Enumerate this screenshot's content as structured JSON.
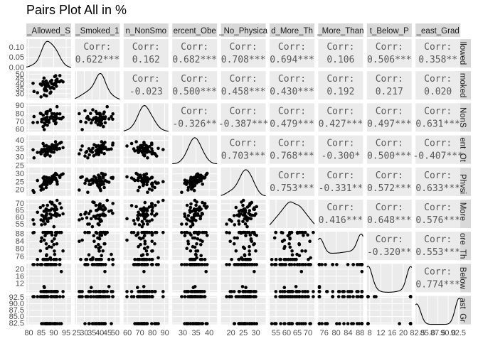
{
  "title": "Pairs Plot All in %",
  "chart_data": {
    "type": "pairs",
    "variables": [
      {
        "label": "_Allowed_S",
        "ticks": [
          80,
          85,
          90,
          95
        ],
        "tick_labels": [
          "80",
          "85",
          "90",
          "95"
        ],
        "range": [
          79,
          97
        ]
      },
      {
        "label": "_Smoked_1",
        "ticks": [
          25,
          30,
          35,
          40,
          45,
          50
        ],
        "tick_labels": [
          "25",
          "30",
          "35",
          "40",
          "45",
          "50"
        ],
        "range": [
          24,
          53
        ]
      },
      {
        "label": "n_NonSmo",
        "ticks": [
          60,
          70,
          80,
          90
        ],
        "tick_labels": [
          "60",
          "70",
          "80",
          "90"
        ],
        "range": [
          57,
          93
        ]
      },
      {
        "label": "ercent_Obe",
        "ticks": [
          30,
          35,
          40
        ],
        "tick_labels": [
          "30",
          "35",
          "40"
        ],
        "range": [
          26,
          43
        ]
      },
      {
        "label": "_No_Physica",
        "ticks": [
          20,
          25,
          30
        ],
        "tick_labels": [
          "20",
          "25",
          "30"
        ],
        "range": [
          16,
          34
        ]
      },
      {
        "label": "d_More_Th",
        "ticks": [
          55,
          60,
          65,
          70
        ],
        "tick_labels": [
          "55",
          "60",
          "65",
          "70"
        ],
        "range": [
          52,
          73
        ]
      },
      {
        "label": "_More_Than",
        "ticks": [
          76,
          80,
          84,
          88
        ],
        "tick_labels": [
          "76",
          "80",
          "84",
          "88"
        ],
        "range": [
          74,
          89
        ]
      },
      {
        "label": "t_Below_P",
        "ticks": [
          8,
          12,
          16,
          20
        ],
        "tick_labels": [
          "8",
          "12",
          "16",
          "20"
        ],
        "range": [
          7,
          23
        ]
      },
      {
        "label": "_east_Grad",
        "ticks": [
          82.5,
          85,
          87.5,
          90,
          92.5
        ],
        "tick_labels": [
          "82.5",
          "85.0",
          "87.5",
          "90.0",
          "92.5"
        ],
        "range": [
          82,
          93
        ]
      }
    ],
    "row_strips": [
      "llowed",
      "moked",
      "NonS",
      "ent_Ot",
      "_Physi",
      "More_",
      "ore_Th",
      "Below",
      "ast_Gr"
    ],
    "density_axis": {
      "ticks": [
        0.0,
        0.05,
        0.1
      ],
      "tick_labels": [
        "0.00",
        "0.05",
        "0.10"
      ],
      "range": [
        0,
        0.14
      ]
    },
    "y_tick_labels": [
      [
        "0.00",
        "0.05",
        "0.10"
      ],
      [
        "30",
        "35",
        "40",
        "45",
        "50"
      ],
      [
        "60",
        "70",
        "80",
        "90"
      ],
      [
        "25",
        "30",
        "35",
        "40"
      ],
      [
        "20",
        "25",
        "30"
      ],
      [
        "55",
        "60",
        "65",
        "70"
      ],
      [
        "76",
        "80",
        "84",
        "88"
      ],
      [
        "12",
        "16",
        "20"
      ],
      [
        "82.5",
        "85.0",
        "87.5",
        "90.0",
        "92.5"
      ]
    ],
    "corr_label": "Corr:",
    "correlations": [
      {
        "row": 1,
        "col": 2,
        "text": "0.622***"
      },
      {
        "row": 1,
        "col": 3,
        "text": "0.162"
      },
      {
        "row": 1,
        "col": 4,
        "text": "0.682***"
      },
      {
        "row": 1,
        "col": 5,
        "text": "0.708***"
      },
      {
        "row": 1,
        "col": 6,
        "text": "0.694***"
      },
      {
        "row": 1,
        "col": 7,
        "text": "0.106"
      },
      {
        "row": 1,
        "col": 8,
        "text": "0.506***"
      },
      {
        "row": 1,
        "col": 9,
        "text": "0.358**"
      },
      {
        "row": 2,
        "col": 3,
        "text": "-0.023"
      },
      {
        "row": 2,
        "col": 4,
        "text": "0.500***"
      },
      {
        "row": 2,
        "col": 5,
        "text": "0.458***"
      },
      {
        "row": 2,
        "col": 6,
        "text": "0.430***"
      },
      {
        "row": 2,
        "col": 7,
        "text": "0.192"
      },
      {
        "row": 2,
        "col": 8,
        "text": "0.217"
      },
      {
        "row": 2,
        "col": 9,
        "text": "0.020"
      },
      {
        "row": 3,
        "col": 4,
        "text": "-0.326**"
      },
      {
        "row": 3,
        "col": 5,
        "text": "-0.387***"
      },
      {
        "row": 3,
        "col": 6,
        "text": "0.479***"
      },
      {
        "row": 3,
        "col": 7,
        "text": "0.427***"
      },
      {
        "row": 3,
        "col": 8,
        "text": "0.497***"
      },
      {
        "row": 3,
        "col": 9,
        "text": "0.631***"
      },
      {
        "row": 4,
        "col": 5,
        "text": "0.703***"
      },
      {
        "row": 4,
        "col": 6,
        "text": "0.768***"
      },
      {
        "row": 4,
        "col": 7,
        "text": "-0.300*"
      },
      {
        "row": 4,
        "col": 8,
        "text": "0.500***"
      },
      {
        "row": 4,
        "col": 9,
        "text": "-0.407***"
      },
      {
        "row": 5,
        "col": 6,
        "text": "0.753***"
      },
      {
        "row": 5,
        "col": 7,
        "text": "-0.331**"
      },
      {
        "row": 5,
        "col": 8,
        "text": "0.572***"
      },
      {
        "row": 5,
        "col": 9,
        "text": "0.633***"
      },
      {
        "row": 6,
        "col": 7,
        "text": "0.416***"
      },
      {
        "row": 6,
        "col": 8,
        "text": "0.648***"
      },
      {
        "row": 6,
        "col": 9,
        "text": "0.576***"
      },
      {
        "row": 7,
        "col": 8,
        "text": "-0.320**"
      },
      {
        "row": 7,
        "col": 9,
        "text": "0.553***"
      },
      {
        "row": 8,
        "col": 9,
        "text": "0.774***"
      }
    ],
    "panel_background": "#ebebeb",
    "strip_background": "#d9d9d9",
    "point_color": "#000000",
    "grid": true,
    "n_points_per_panel": 55
  }
}
